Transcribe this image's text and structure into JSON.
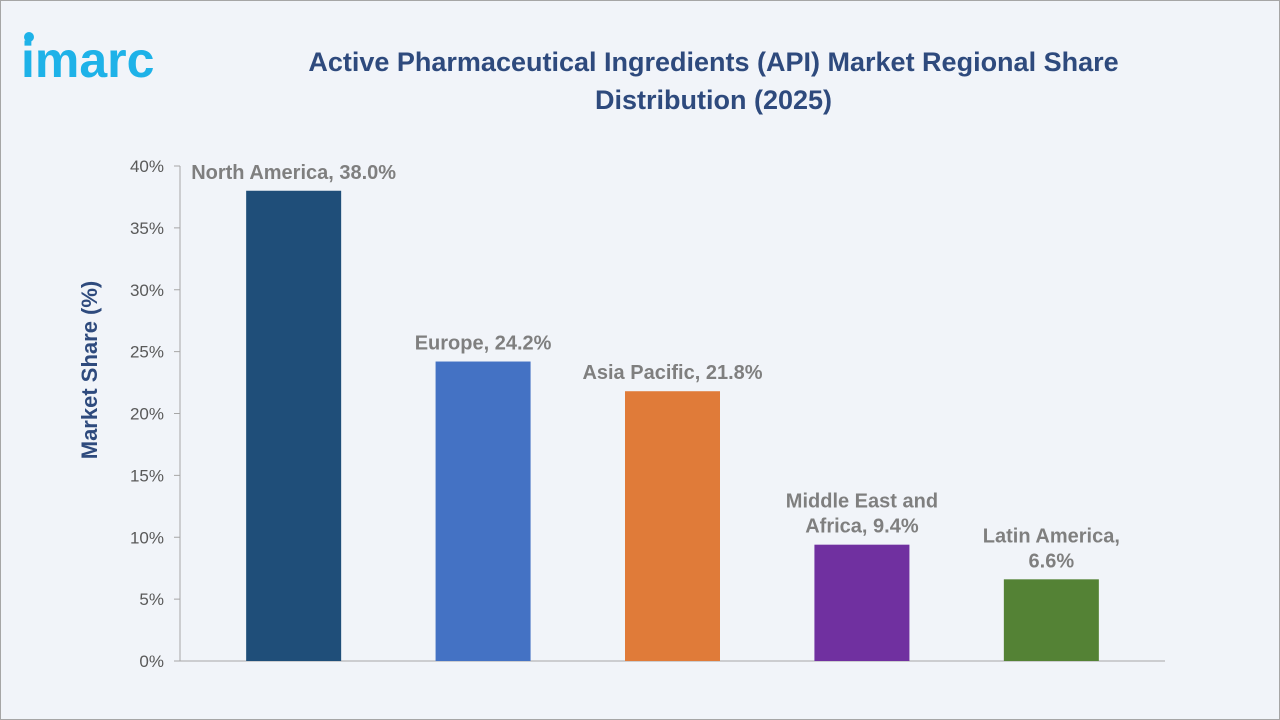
{
  "brand": {
    "name": "imarc"
  },
  "title": "Active Pharmaceutical Ingredients (API) Market Regional Share Distribution (2025)",
  "chart_data": {
    "type": "bar",
    "title": "Active Pharmaceutical Ingredients (API) Market Regional Share Distribution (2025)",
    "xlabel": "",
    "ylabel": "Market Share (%)",
    "ylim": [
      0,
      40
    ],
    "yticks": [
      0,
      5,
      10,
      15,
      20,
      25,
      30,
      35,
      40
    ],
    "ytick_labels": [
      "0%",
      "5%",
      "10%",
      "15%",
      "20%",
      "25%",
      "30%",
      "35%",
      "40%"
    ],
    "grid": false,
    "legend": "none",
    "categories": [
      "North America",
      "Europe",
      "Asia Pacific",
      "Middle East and Africa",
      "Latin America"
    ],
    "values": [
      38.0,
      24.2,
      21.8,
      9.4,
      6.6
    ],
    "data_labels": [
      [
        "North America, 38.0%"
      ],
      [
        "Europe, 24.2%"
      ],
      [
        "Asia Pacific, 21.8%"
      ],
      [
        "Middle East and",
        "Africa, 9.4%"
      ],
      [
        "Latin America,",
        "6.6%"
      ]
    ],
    "colors": [
      "#1f4e79",
      "#4472c4",
      "#e07b39",
      "#7030a0",
      "#548235"
    ]
  },
  "colors": {
    "brand": "#1eb2e8",
    "title": "#2e4a7d",
    "axis": "#a6a6a6"
  }
}
